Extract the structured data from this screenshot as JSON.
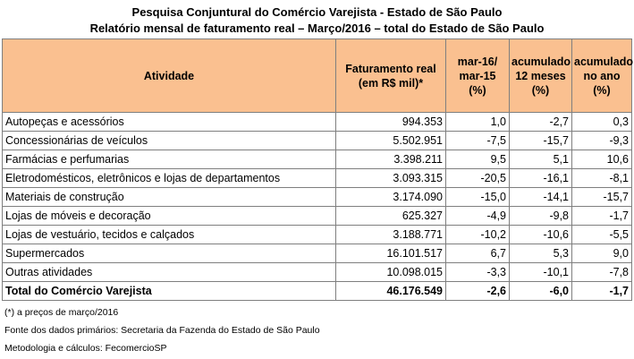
{
  "title_line1": "Pesquisa Conjuntural do Comércio Varejista - Estado de São Paulo",
  "title_line2": "Relatório mensal de faturamento real – Março/2016 – total do Estado de São Paulo",
  "header": {
    "atividade": "Atividade",
    "faturamento_1": "Faturamento real",
    "faturamento_2": "(em R$ mil)*",
    "mar_1": "mar-16/",
    "mar_2": "mar-15",
    "mar_3": "(%)",
    "acum12_1": "acumulado",
    "acum12_2": "12 meses",
    "acum12_3": "(%)",
    "acumano_1": "acumulado",
    "acumano_2": "no ano",
    "acumano_3": "(%)"
  },
  "rows": [
    {
      "atividade": "Autopeças e acessórios",
      "faturamento": "994.353",
      "mar": "1,0",
      "acum12": "-2,7",
      "acumano": "0,3"
    },
    {
      "atividade": "Concessionárias de veículos",
      "faturamento": "5.502.951",
      "mar": "-7,5",
      "acum12": "-15,7",
      "acumano": "-9,3"
    },
    {
      "atividade": "Farmácias e perfumarias",
      "faturamento": "3.398.211",
      "mar": "9,5",
      "acum12": "5,1",
      "acumano": "10,6"
    },
    {
      "atividade": "Eletrodomésticos, eletrônicos e lojas de departamentos",
      "faturamento": "3.093.315",
      "mar": "-20,5",
      "acum12": "-16,1",
      "acumano": "-8,1"
    },
    {
      "atividade": "Materiais de construção",
      "faturamento": "3.174.090",
      "mar": "-15,0",
      "acum12": "-14,1",
      "acumano": "-15,7"
    },
    {
      "atividade": "Lojas de móveis e decoração",
      "faturamento": "625.327",
      "mar": "-4,9",
      "acum12": "-9,8",
      "acumano": "-1,7"
    },
    {
      "atividade": "Lojas de vestuário, tecidos e calçados",
      "faturamento": "3.188.771",
      "mar": "-10,2",
      "acum12": "-10,6",
      "acumano": "-5,5"
    },
    {
      "atividade": "Supermercados",
      "faturamento": "16.101.517",
      "mar": "6,7",
      "acum12": "5,3",
      "acumano": "9,0"
    },
    {
      "atividade": "Outras atividades",
      "faturamento": "10.098.015",
      "mar": "-3,3",
      "acum12": "-10,1",
      "acumano": "-7,8"
    }
  ],
  "total": {
    "atividade": "Total do Comércio Varejista",
    "faturamento": "46.176.549",
    "mar": "-2,6",
    "acum12": "-6,0",
    "acumano": "-1,7"
  },
  "notes": {
    "note1": "(*) a preços de março/2016",
    "note2": "Fonte dos dados primários: Secretaria da Fazenda do Estado de São Paulo",
    "note3": "Metodologia e cálculos: FecomercioSP"
  },
  "colors": {
    "header_bg": "#fac090",
    "border": "#7f7f7f"
  }
}
